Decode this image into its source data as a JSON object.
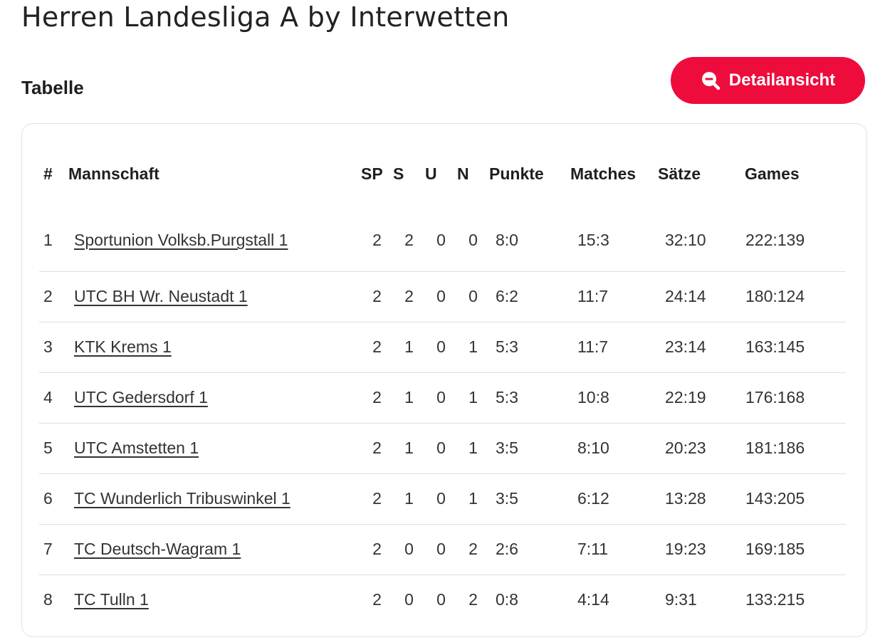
{
  "league_title": "Herren Landesliga A by Interwetten",
  "section_title": "Tabelle",
  "detail_button": {
    "label": "Detailansicht",
    "icon": "zoom-out-icon",
    "color": "#ee0c3c"
  },
  "table": {
    "headers": {
      "rank": "#",
      "team": "Mannschaft",
      "sp": "SP",
      "s": "S",
      "u": "U",
      "n": "N",
      "points": "Punkte",
      "matches": "Matches",
      "sets": "Sätze",
      "games": "Games"
    },
    "rows": [
      {
        "rank": "1",
        "team": "Sportunion Volksb.Purgstall 1",
        "sp": "2",
        "s": "2",
        "u": "0",
        "n": "0",
        "points": "8:0",
        "matches": "15:3",
        "sets": "32:10",
        "games": "222:139"
      },
      {
        "rank": "2",
        "team": "UTC BH Wr. Neustadt 1",
        "sp": "2",
        "s": "2",
        "u": "0",
        "n": "0",
        "points": "6:2",
        "matches": "11:7",
        "sets": "24:14",
        "games": "180:124"
      },
      {
        "rank": "3",
        "team": "KTK Krems 1",
        "sp": "2",
        "s": "1",
        "u": "0",
        "n": "1",
        "points": "5:3",
        "matches": "11:7",
        "sets": "23:14",
        "games": "163:145"
      },
      {
        "rank": "4",
        "team": "UTC Gedersdorf 1",
        "sp": "2",
        "s": "1",
        "u": "0",
        "n": "1",
        "points": "5:3",
        "matches": "10:8",
        "sets": "22:19",
        "games": "176:168"
      },
      {
        "rank": "5",
        "team": "UTC Amstetten 1",
        "sp": "2",
        "s": "1",
        "u": "0",
        "n": "1",
        "points": "3:5",
        "matches": "8:10",
        "sets": "20:23",
        "games": "181:186"
      },
      {
        "rank": "6",
        "team": "TC Wunderlich Tribuswinkel 1",
        "sp": "2",
        "s": "1",
        "u": "0",
        "n": "1",
        "points": "3:5",
        "matches": "6:12",
        "sets": "13:28",
        "games": "143:205"
      },
      {
        "rank": "7",
        "team": "TC Deutsch-Wagram 1",
        "sp": "2",
        "s": "0",
        "u": "0",
        "n": "2",
        "points": "2:6",
        "matches": "7:11",
        "sets": "19:23",
        "games": "169:185"
      },
      {
        "rank": "8",
        "team": "TC Tulln 1",
        "sp": "2",
        "s": "0",
        "u": "0",
        "n": "2",
        "points": "0:8",
        "matches": "4:14",
        "sets": "9:31",
        "games": "133:215"
      }
    ]
  }
}
